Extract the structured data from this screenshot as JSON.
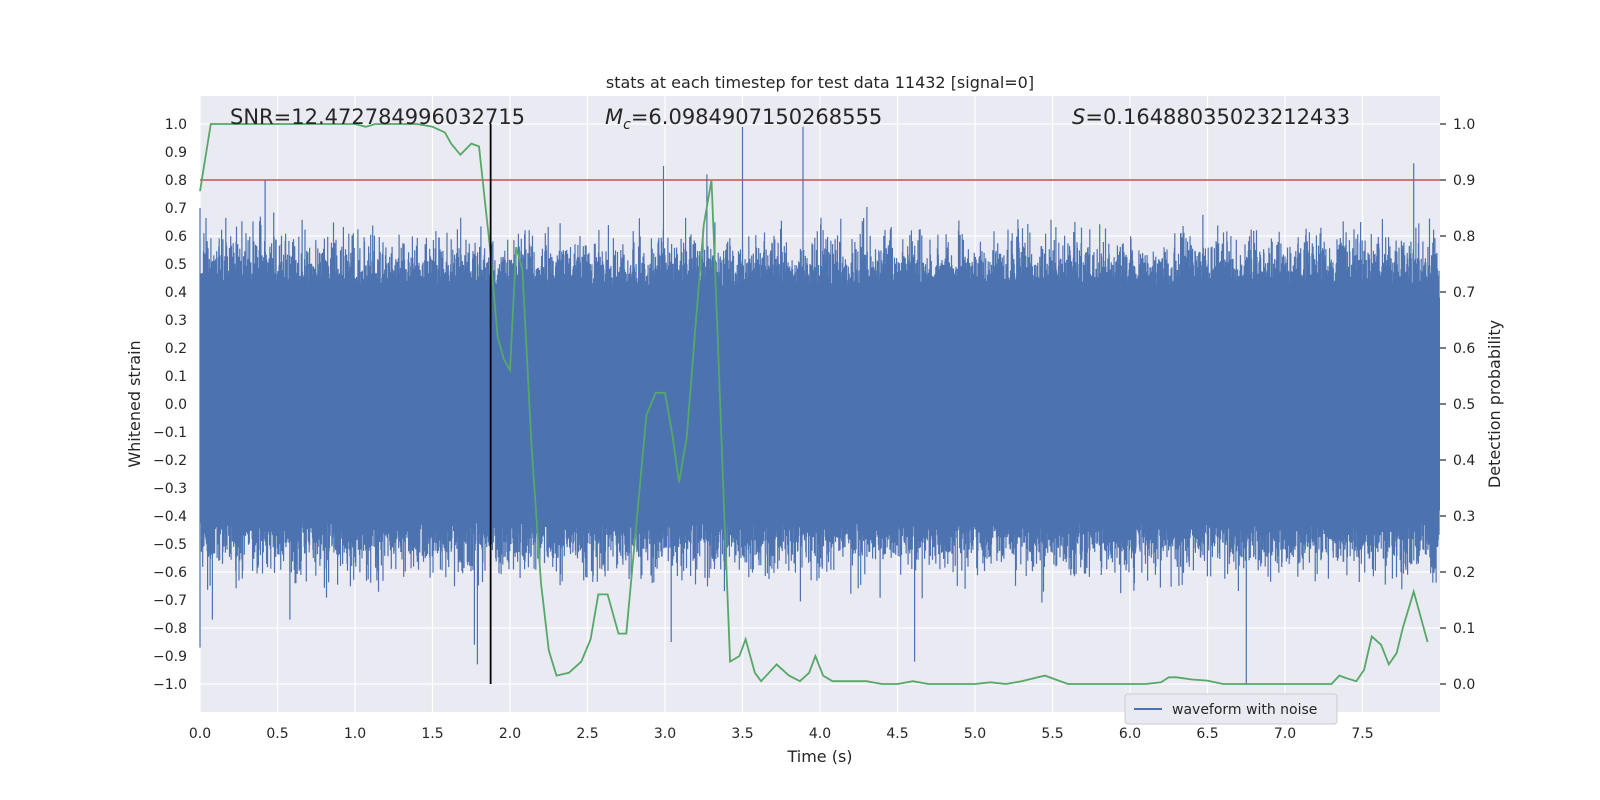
{
  "chart_data": {
    "type": "line",
    "title": "stats at each timestep for test data 11432 [signal=0]",
    "xlabel": "Time (s)",
    "ylabel_left": "Whitened strain",
    "ylabel_right": "Detection probability",
    "xlim": [
      0.0,
      8.0
    ],
    "ylim_left": [
      -1.1,
      1.1
    ],
    "ylim_right": [
      -0.05,
      1.05
    ],
    "x_ticks": [
      0.0,
      0.5,
      1.0,
      1.5,
      2.0,
      2.5,
      3.0,
      3.5,
      4.0,
      4.5,
      5.0,
      5.5,
      6.0,
      6.5,
      7.0,
      7.5
    ],
    "x_tick_labels": [
      "0.0",
      "0.5",
      "1.0",
      "1.5",
      "2.0",
      "2.5",
      "3.0",
      "3.5",
      "4.0",
      "4.5",
      "5.0",
      "5.5",
      "6.0",
      "6.5",
      "7.0",
      "7.5"
    ],
    "y_left_ticks": [
      -1.0,
      -0.9,
      -0.8,
      -0.7,
      -0.6,
      -0.5,
      -0.4,
      -0.3,
      -0.2,
      -0.1,
      0.0,
      0.1,
      0.2,
      0.3,
      0.4,
      0.5,
      0.6,
      0.7,
      0.8,
      0.9,
      1.0
    ],
    "y_left_tick_labels": [
      "−1.0",
      "−0.9",
      "−0.8",
      "−0.7",
      "−0.6",
      "−0.5",
      "−0.4",
      "−0.3",
      "−0.2",
      "−0.1",
      "0.0",
      "0.1",
      "0.2",
      "0.3",
      "0.4",
      "0.5",
      "0.6",
      "0.7",
      "0.8",
      "0.9",
      "1.0"
    ],
    "y_right_ticks": [
      0.0,
      0.1,
      0.2,
      0.3,
      0.4,
      0.5,
      0.6,
      0.7,
      0.8,
      0.9,
      1.0
    ],
    "y_right_tick_labels": [
      "0.0",
      "0.1",
      "0.2",
      "0.3",
      "0.4",
      "0.5",
      "0.6",
      "0.7",
      "0.8",
      "0.9",
      "1.0"
    ],
    "annotations": {
      "snr": "SNR=12.472784996032715",
      "mc_symbol": "M",
      "mc_sub": "c",
      "mc_value": "=6.0984907150268555",
      "s_symbol": "S",
      "s_value": "=0.16488035023212433"
    },
    "legend": {
      "label": "waveform with noise",
      "placement": "bottom-right"
    },
    "threshold": {
      "axis": "right",
      "value": 0.9,
      "color": "#c44e52"
    },
    "marker_line": {
      "x": 1.875,
      "y_range": [
        -1.0,
        1.0
      ],
      "color": "#000000"
    },
    "series": [
      {
        "name": "waveform with noise",
        "axis": "left",
        "color": "#4c72b0",
        "style": "dense-noise",
        "approx_samples_per_second": 1024,
        "typical_amplitude": 0.2,
        "envelope_peaks": [
          {
            "x": 0.0,
            "y": 0.7
          },
          {
            "x": 0.0,
            "y": -0.87
          },
          {
            "x": 0.08,
            "y": -0.77
          },
          {
            "x": 0.42,
            "y": 0.8
          },
          {
            "x": 0.58,
            "y": -0.77
          },
          {
            "x": 1.77,
            "y": -0.86
          },
          {
            "x": 1.79,
            "y": -0.93
          },
          {
            "x": 2.99,
            "y": 0.85
          },
          {
            "x": 3.04,
            "y": -0.85
          },
          {
            "x": 3.27,
            "y": 0.82
          },
          {
            "x": 3.5,
            "y": 0.99
          },
          {
            "x": 3.89,
            "y": 0.99
          },
          {
            "x": 4.61,
            "y": -0.92
          },
          {
            "x": 6.75,
            "y": -1.0
          },
          {
            "x": 7.83,
            "y": 0.86
          }
        ]
      },
      {
        "name": "Detection probability",
        "axis": "right",
        "color": "#55a868",
        "x": [
          0.0,
          0.07,
          0.12,
          0.2,
          0.3,
          0.4,
          0.5,
          0.6,
          0.7,
          0.8,
          0.9,
          1.0,
          1.07,
          1.13,
          1.25,
          1.4,
          1.5,
          1.58,
          1.62,
          1.68,
          1.75,
          1.8,
          1.87,
          1.92,
          1.96,
          2.0,
          2.04,
          2.08,
          2.14,
          2.2,
          2.25,
          2.3,
          2.38,
          2.46,
          2.52,
          2.57,
          2.63,
          2.7,
          2.75,
          2.82,
          2.88,
          2.94,
          3.0,
          3.05,
          3.09,
          3.14,
          3.2,
          3.25,
          3.3,
          3.34,
          3.38,
          3.42,
          3.48,
          3.52,
          3.58,
          3.62,
          3.67,
          3.72,
          3.8,
          3.87,
          3.93,
          3.97,
          4.02,
          4.08,
          4.14,
          4.3,
          4.4,
          4.5,
          4.6,
          4.7,
          4.8,
          5.0,
          5.1,
          5.2,
          5.3,
          5.45,
          5.6,
          5.8,
          6.0,
          6.1,
          6.2,
          6.25,
          6.3,
          6.4,
          6.5,
          6.6,
          6.7,
          6.8,
          6.9,
          7.0,
          7.1,
          7.2,
          7.3,
          7.35,
          7.4,
          7.46,
          7.51,
          7.56,
          7.62,
          7.67,
          7.72,
          7.76,
          7.83,
          7.92
        ],
        "y": [
          0.88,
          1.0,
          1.0,
          1.0,
          1.0,
          1.0,
          1.0,
          1.0,
          1.0,
          1.0,
          1.0,
          1.0,
          0.995,
          1.0,
          1.0,
          1.0,
          0.995,
          0.985,
          0.965,
          0.945,
          0.965,
          0.96,
          0.78,
          0.62,
          0.58,
          0.56,
          0.78,
          0.74,
          0.42,
          0.18,
          0.06,
          0.015,
          0.02,
          0.04,
          0.08,
          0.16,
          0.16,
          0.09,
          0.09,
          0.3,
          0.48,
          0.52,
          0.52,
          0.44,
          0.36,
          0.44,
          0.65,
          0.82,
          0.9,
          0.62,
          0.32,
          0.04,
          0.05,
          0.08,
          0.02,
          0.005,
          0.02,
          0.035,
          0.015,
          0.005,
          0.02,
          0.05,
          0.015,
          0.005,
          0.005,
          0.005,
          0.0,
          0.0,
          0.005,
          0.0,
          0.0,
          0.0,
          0.003,
          0.0,
          0.005,
          0.015,
          0.0,
          0.0,
          0.0,
          0.0,
          0.003,
          0.012,
          0.012,
          0.008,
          0.006,
          0.0,
          0.0,
          0.0,
          0.0,
          0.0,
          0.0,
          0.0,
          0.0,
          0.015,
          0.01,
          0.005,
          0.025,
          0.085,
          0.07,
          0.035,
          0.055,
          0.1,
          0.165,
          0.075
        ]
      }
    ]
  }
}
